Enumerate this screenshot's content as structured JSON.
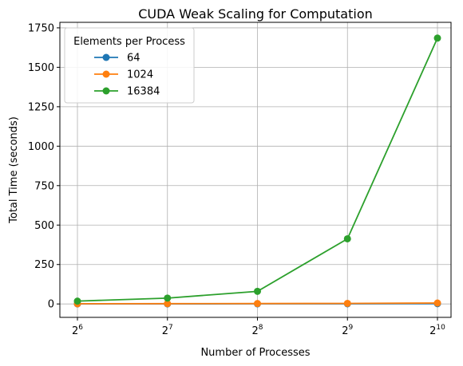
{
  "chart_data": {
    "type": "line",
    "title": "CUDA Weak Scaling for Computation",
    "xlabel": "Number of Processes",
    "ylabel": "Total Time (seconds)",
    "x_scale": "log2",
    "x": [
      64,
      128,
      256,
      512,
      1024
    ],
    "x_tick_labels": [
      {
        "base": "2",
        "exp": "6"
      },
      {
        "base": "2",
        "exp": "7"
      },
      {
        "base": "2",
        "exp": "8"
      },
      {
        "base": "2",
        "exp": "9"
      },
      {
        "base": "2",
        "exp": "10"
      }
    ],
    "y_ticks": [
      0,
      250,
      500,
      750,
      1000,
      1250,
      1500,
      1750
    ],
    "ylim": [
      -85,
      1785
    ],
    "grid": true,
    "legend": {
      "title": "Elements per Process",
      "position": "top-left"
    },
    "series": [
      {
        "name": "64",
        "color": "#1f77b4",
        "values": [
          0.3,
          0.5,
          0.8,
          1.2,
          1.8
        ]
      },
      {
        "name": "1024",
        "color": "#ff7f0e",
        "values": [
          1.5,
          2.0,
          2.5,
          3.5,
          6.0
        ]
      },
      {
        "name": "16384",
        "color": "#2ca02c",
        "values": [
          18,
          37,
          80,
          413,
          1685
        ]
      }
    ]
  }
}
